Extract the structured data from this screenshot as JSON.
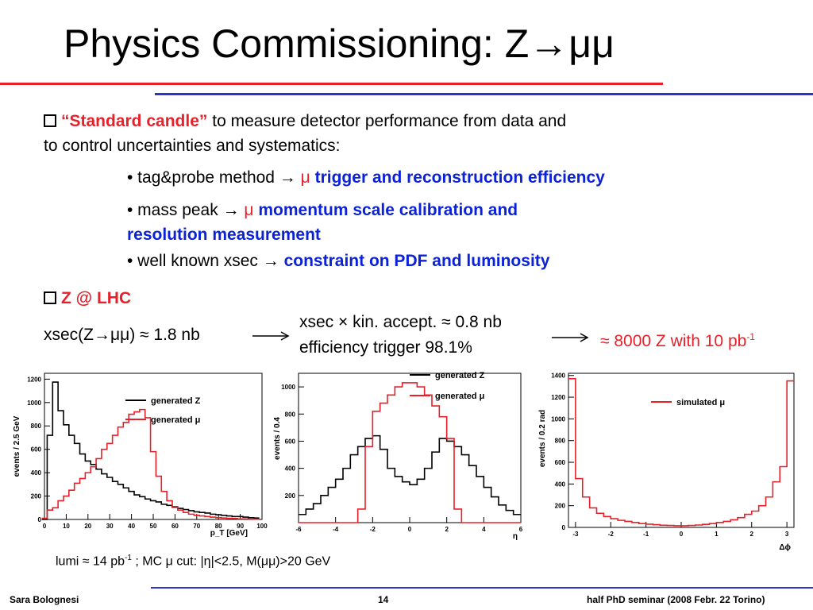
{
  "title": "Physics Commissioning: Z→μμ",
  "bullet1": {
    "highlight": "“Standard candle”",
    "text": "to measure detector performance from data and",
    "text2": "to control uncertainties and systematics:"
  },
  "sub1": {
    "prefix": "• tag&probe method → ",
    "mu": "μ",
    "highlight": "trigger and reconstruction efficiency"
  },
  "sub2": {
    "prefix": "• mass peak → ",
    "mu": "μ",
    "highlight": "momentum scale calibration and",
    "highlight2": "resolution measurement"
  },
  "sub3": {
    "prefix": "• well known xsec → ",
    "highlight": "constraint on PDF and luminosity"
  },
  "bullet2": {
    "highlight": "Z @ LHC"
  },
  "xsec": "xsec(Z→μμ) ≈ 1.8 nb",
  "accept1": "xsec × kin. accept. ≈ 0.8 nb",
  "accept2": "efficiency trigger 98.1%",
  "result": {
    "text": "≈ 8000 Z with 10 pb",
    "sup": "-1"
  },
  "lumi": {
    "a": "lumi ≈ 14 pb",
    "sup": "-1",
    "b": " ;  MC μ cut: |η|<2.5, M(μμ)>20 GeV"
  },
  "footer": {
    "author": "Sara Bolognesi",
    "page": "14",
    "event": "half PhD seminar (2008 Febr. 22 Torino)"
  },
  "colors": {
    "red": "#e8202a",
    "blue": "#0b22d8",
    "rule_red": "#e8202a",
    "rule_blue": "#2b35c8"
  },
  "chart_data": [
    {
      "type": "line",
      "ylabel": "events / 2.5 GeV",
      "xlabel": "p_T [GeV]",
      "xlim": [
        0,
        100
      ],
      "ylim": [
        0,
        1250
      ],
      "xticks": [
        "0",
        "10",
        "20",
        "30",
        "40",
        "50",
        "60",
        "70",
        "80",
        "90",
        "100"
      ],
      "yticks": [
        "0",
        "200",
        "400",
        "600",
        "800",
        "1000",
        "1200"
      ],
      "legend": [
        "generated Z",
        "generated μ"
      ],
      "series": [
        {
          "name": "generated Z",
          "color": "#000000",
          "x": [
            0,
            2.5,
            5,
            7.5,
            10,
            12.5,
            15,
            17.5,
            20,
            22.5,
            25,
            27.5,
            30,
            32.5,
            35,
            37.5,
            40,
            42.5,
            45,
            47.5,
            50,
            52.5,
            55,
            57.5,
            60,
            62.5,
            65,
            67.5,
            70,
            72.5,
            75,
            77.5,
            80,
            82.5,
            85,
            87.5,
            90,
            92.5,
            95,
            97.5
          ],
          "values": [
            0,
            720,
            1175,
            930,
            810,
            720,
            650,
            560,
            500,
            470,
            430,
            390,
            360,
            325,
            300,
            270,
            240,
            210,
            195,
            175,
            160,
            150,
            130,
            120,
            105,
            95,
            85,
            75,
            65,
            60,
            55,
            45,
            40,
            35,
            30,
            25,
            25,
            20,
            15,
            12
          ]
        },
        {
          "name": "generated μ",
          "color": "#e8202a",
          "x": [
            0,
            2.5,
            5,
            7.5,
            10,
            12.5,
            15,
            17.5,
            20,
            22.5,
            25,
            27.5,
            30,
            32.5,
            35,
            37.5,
            40,
            42.5,
            45,
            47.5,
            50,
            52.5,
            55,
            57.5,
            60,
            62.5,
            65,
            67.5,
            70,
            72.5,
            75,
            77.5,
            80,
            82.5,
            85,
            87.5,
            90,
            92.5,
            95,
            97.5
          ],
          "values": [
            10,
            80,
            100,
            160,
            200,
            250,
            310,
            350,
            400,
            450,
            520,
            600,
            650,
            720,
            790,
            830,
            900,
            920,
            940,
            870,
            580,
            370,
            240,
            160,
            110,
            80,
            60,
            45,
            35,
            30,
            25,
            20,
            15,
            12,
            10,
            8,
            5,
            5,
            3,
            2
          ]
        }
      ]
    },
    {
      "type": "line",
      "ylabel": "events / 0.4",
      "xlabel": "η",
      "xlim": [
        -6,
        6
      ],
      "ylim": [
        0,
        1100
      ],
      "xticks": [
        "-6",
        "-4",
        "-2",
        "0",
        "2",
        "4",
        "6"
      ],
      "yticks": [
        "200",
        "400",
        "600",
        "800",
        "1000"
      ],
      "legend": [
        "generated Z",
        "generated μ"
      ],
      "series": [
        {
          "name": "generated Z",
          "color": "#000000",
          "x": [
            -5.8,
            -5.4,
            -5.0,
            -4.6,
            -4.2,
            -3.8,
            -3.4,
            -3.0,
            -2.6,
            -2.2,
            -1.8,
            -1.4,
            -1.0,
            -0.6,
            -0.2,
            0.2,
            0.6,
            1.0,
            1.4,
            1.8,
            2.2,
            2.6,
            3.0,
            3.4,
            3.8,
            4.2,
            4.6,
            5.0,
            5.4,
            5.8
          ],
          "values": [
            60,
            100,
            140,
            200,
            260,
            320,
            400,
            500,
            560,
            620,
            640,
            540,
            400,
            340,
            300,
            280,
            320,
            400,
            520,
            620,
            600,
            560,
            500,
            420,
            340,
            260,
            190,
            130,
            90,
            60
          ]
        },
        {
          "name": "generated μ",
          "color": "#e8202a",
          "x": [
            -5.8,
            -5.4,
            -5.0,
            -4.6,
            -4.2,
            -3.8,
            -3.4,
            -3.0,
            -2.6,
            -2.2,
            -1.8,
            -1.4,
            -1.0,
            -0.6,
            -0.2,
            0.2,
            0.6,
            1.0,
            1.4,
            1.8,
            2.2,
            2.6,
            3.0,
            3.4,
            3.8,
            4.2,
            4.6,
            5.0,
            5.4,
            5.8
          ],
          "values": [
            0,
            0,
            0,
            0,
            0,
            0,
            0,
            0,
            100,
            560,
            820,
            880,
            940,
            1000,
            1030,
            1030,
            1000,
            940,
            860,
            780,
            620,
            100,
            0,
            0,
            0,
            0,
            0,
            0,
            0,
            0
          ]
        }
      ]
    },
    {
      "type": "line",
      "ylabel": "events / 0.2 rad",
      "xlabel": "Δϕ",
      "xlim": [
        -3.2,
        3.2
      ],
      "ylim": [
        0,
        1420
      ],
      "xticks": [
        "-3",
        "-2",
        "-1",
        "0",
        "1",
        "2",
        "3"
      ],
      "yticks": [
        "0",
        "200",
        "400",
        "600",
        "800",
        "1000",
        "1200",
        "1400"
      ],
      "legend": [
        "simulated μ"
      ],
      "series": [
        {
          "name": "simulated μ",
          "color": "#e8202a",
          "x": [
            -3.1,
            -2.9,
            -2.7,
            -2.5,
            -2.3,
            -2.1,
            -1.9,
            -1.7,
            -1.5,
            -1.3,
            -1.1,
            -0.9,
            -0.7,
            -0.5,
            -0.3,
            -0.1,
            0.1,
            0.3,
            0.5,
            0.7,
            0.9,
            1.1,
            1.3,
            1.5,
            1.7,
            1.9,
            2.1,
            2.3,
            2.5,
            2.7,
            2.9,
            3.1
          ],
          "values": [
            1370,
            450,
            280,
            180,
            130,
            100,
            80,
            65,
            55,
            45,
            35,
            30,
            25,
            20,
            18,
            15,
            15,
            18,
            22,
            28,
            35,
            45,
            55,
            70,
            90,
            120,
            150,
            200,
            280,
            420,
            560,
            1350
          ]
        }
      ]
    }
  ]
}
